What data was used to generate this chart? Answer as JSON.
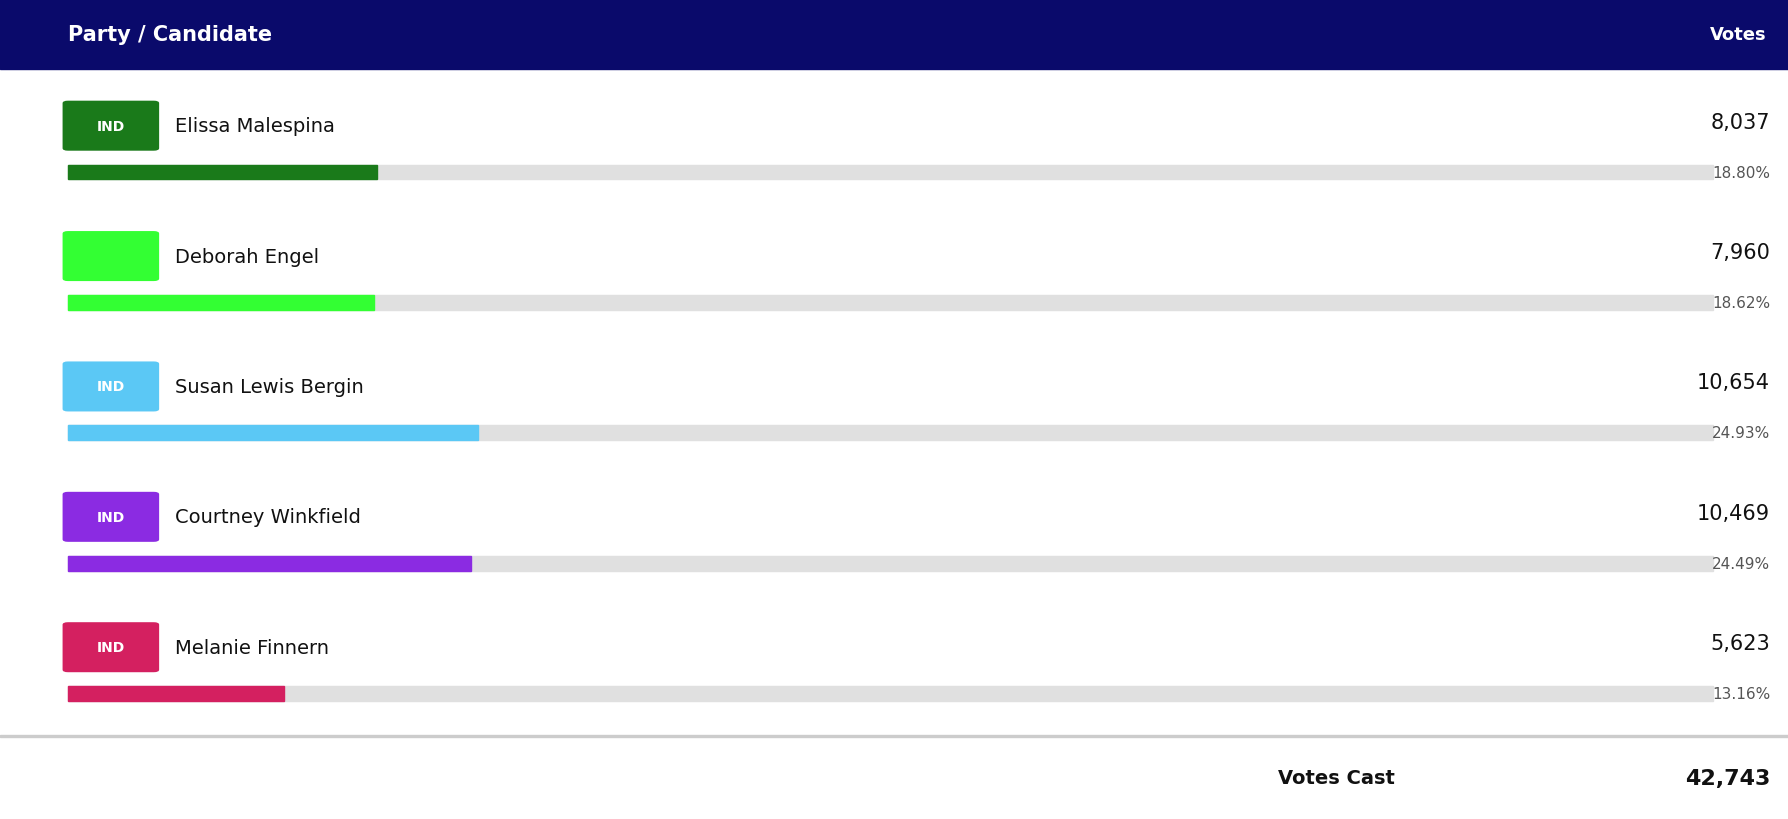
{
  "header_bg": "#0a0a6b",
  "header_text_color": "#ffffff",
  "header_label_left": "Party / Candidate",
  "header_label_right": "Votes",
  "background_color": "#ffffff",
  "candidates": [
    {
      "name": "Elissa Malespina",
      "badge_text": "IND",
      "badge_color": "#1a7a1a",
      "bar_color": "#1a7a1a",
      "votes": "8,037",
      "pct": "18.80%",
      "pct_val": 18.8
    },
    {
      "name": "Deborah Engel",
      "badge_text": "",
      "badge_color": "#33ff33",
      "bar_color": "#33ff33",
      "votes": "7,960",
      "pct": "18.62%",
      "pct_val": 18.62
    },
    {
      "name": "Susan Lewis Bergin",
      "badge_text": "IND",
      "badge_color": "#5bc8f5",
      "bar_color": "#5bc8f5",
      "votes": "10,654",
      "pct": "24.93%",
      "pct_val": 24.93
    },
    {
      "name": "Courtney Winkfield",
      "badge_text": "IND",
      "badge_color": "#8b2be2",
      "bar_color": "#8b2be2",
      "votes": "10,469",
      "pct": "24.49%",
      "pct_val": 24.49
    },
    {
      "name": "Melanie Finnern",
      "badge_text": "IND",
      "badge_color": "#d42060",
      "bar_color": "#d42060",
      "votes": "5,623",
      "pct": "13.16%",
      "pct_val": 13.16
    }
  ],
  "votes_cast_label": "Votes Cast",
  "votes_cast_value": "42,743",
  "bar_bg_color": "#e0e0e0",
  "separator_color": "#cccccc"
}
